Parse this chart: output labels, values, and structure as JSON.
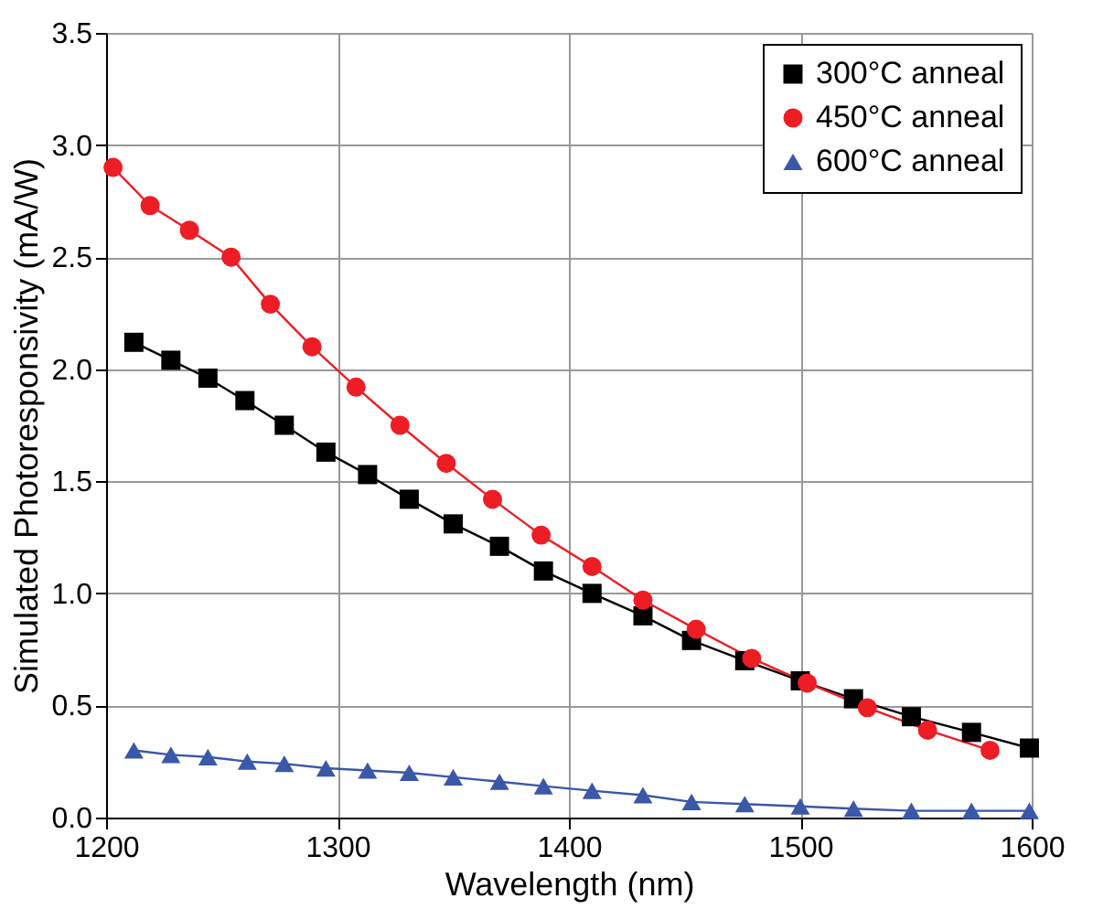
{
  "chart_data": {
    "type": "line",
    "xlabel": "Wavelength (nm)",
    "ylabel": "Simulated Photoresponsivity (mA/W)",
    "xlim": [
      1200,
      1600
    ],
    "xticks": [
      1200,
      1300,
      1400,
      1500,
      1600
    ],
    "ylim": [
      0,
      3.5
    ],
    "yticks": [
      {
        "value": 0,
        "label": "0.0"
      },
      0.5,
      {
        "value": 1,
        "label": "1.0"
      },
      1.5,
      {
        "value": 2,
        "label": "2.0"
      },
      2.5,
      {
        "value": 3,
        "label": "3.0"
      },
      3.5
    ],
    "grid": true,
    "legend": "top right",
    "line_style": "solid",
    "series": [
      {
        "name": "300°C anneal",
        "color": "#000000",
        "marker": "square",
        "x": [
          1212,
          1228,
          1244,
          1260,
          1277,
          1295,
          1313,
          1331,
          1350,
          1370,
          1389,
          1410,
          1432,
          1453,
          1476,
          1500,
          1523,
          1548,
          1574,
          1599
        ],
        "values": [
          2.12,
          2.04,
          1.96,
          1.86,
          1.75,
          1.63,
          1.53,
          1.42,
          1.31,
          1.21,
          1.1,
          1.0,
          0.9,
          0.79,
          0.7,
          0.61,
          0.53,
          0.45,
          0.38,
          0.31
        ]
      },
      {
        "name": "450°C anneal",
        "color": "#ee1c25",
        "marker": "circle",
        "x": [
          1203,
          1219,
          1236,
          1254,
          1271,
          1289,
          1308,
          1327,
          1347,
          1367,
          1388,
          1410,
          1432,
          1455,
          1479,
          1503,
          1529,
          1555,
          1582
        ],
        "values": [
          2.9,
          2.73,
          2.62,
          2.5,
          2.29,
          2.1,
          1.92,
          1.75,
          1.58,
          1.42,
          1.26,
          1.12,
          0.97,
          0.84,
          0.71,
          0.6,
          0.49,
          0.39,
          0.3
        ]
      },
      {
        "name": "600°C anneal",
        "color": "#3a57a8",
        "marker": "triangle",
        "x": [
          1212,
          1228,
          1244,
          1261,
          1277,
          1295,
          1313,
          1331,
          1350,
          1370,
          1389,
          1410,
          1432,
          1453,
          1476,
          1500,
          1523,
          1548,
          1574,
          1599
        ],
        "values": [
          0.3,
          0.28,
          0.27,
          0.25,
          0.24,
          0.22,
          0.21,
          0.2,
          0.18,
          0.16,
          0.14,
          0.12,
          0.1,
          0.07,
          0.06,
          0.05,
          0.04,
          0.03,
          0.03,
          0.03
        ]
      }
    ]
  }
}
